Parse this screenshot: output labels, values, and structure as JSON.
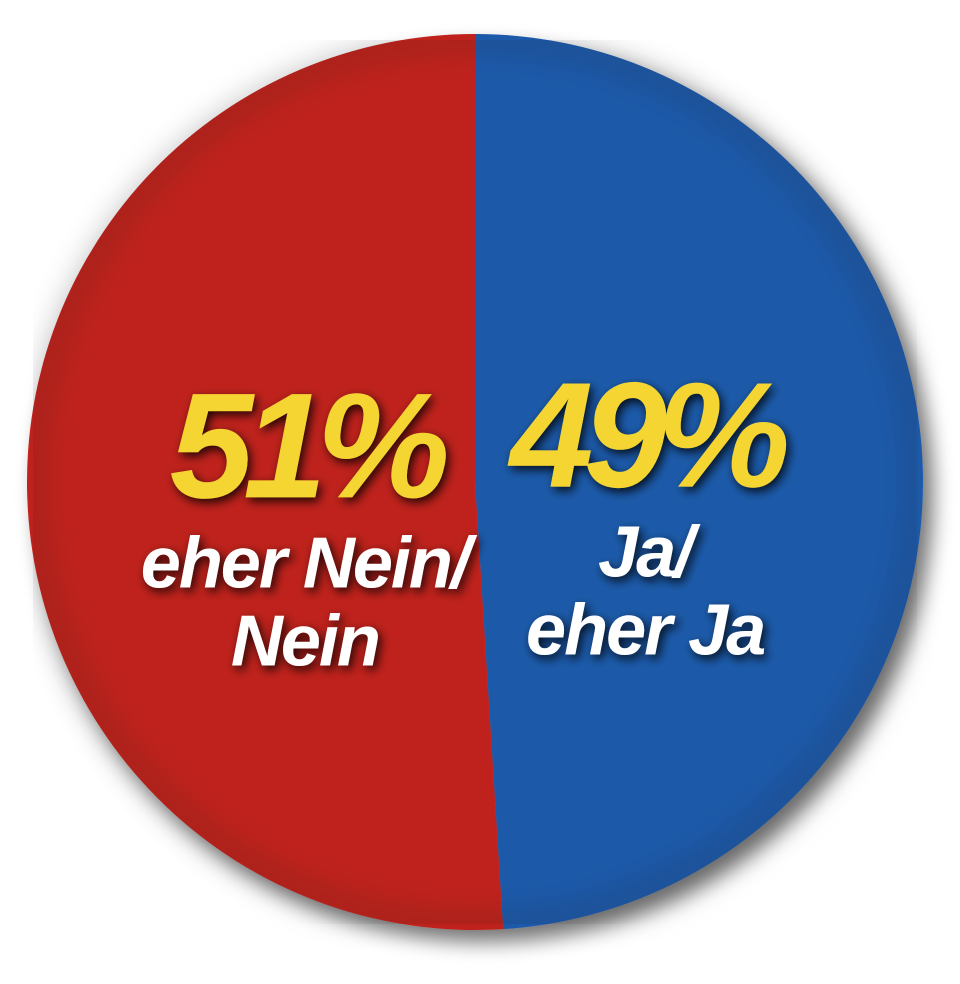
{
  "chart_data": {
    "type": "pie",
    "title": "",
    "start_angle_deg": 0,
    "direction": "clockwise",
    "slices": [
      {
        "value": 49,
        "percent_label": "49%",
        "label_lines": [
          "Ja/",
          "eher Ja"
        ],
        "color": "#1f5aa9"
      },
      {
        "value": 51,
        "percent_label": "51%",
        "label_lines": [
          "eher Nein/",
          "Nein"
        ],
        "color": "#bf241c"
      }
    ],
    "percent_color": "#f5d531",
    "label_color": "#ffffff",
    "legend": "none"
  }
}
